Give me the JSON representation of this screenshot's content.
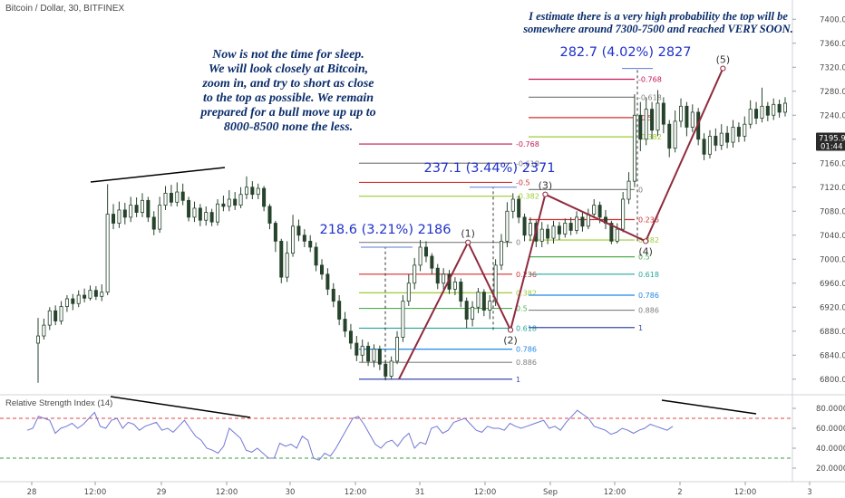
{
  "symbol_title": "Bitcoin / Dollar, 30, BITFINEX",
  "notes": {
    "left": [
      "Now is not the time for sleep.",
      "We will look closely at Bitcoin,",
      "zoom in, and try to short as close",
      "to the top as possible. We remain",
      "prepared for a bull move up up to",
      "8000-8500 none the less."
    ],
    "right": [
      "I estimate there is a very high probability the top will be",
      "somewhere around 7300-7500 and reached VERY SOON."
    ]
  },
  "measures": [
    "218.6 (3.21%) 2186",
    "237.1 (3.44%) 2371",
    "282.7 (4.02%) 2827"
  ],
  "colors": {
    "bull": "#26432b",
    "bear": "#26432b",
    "rsi_line": "#7077d6",
    "overbought": "#e24646",
    "oversold": "#3b9d3b",
    "wave_line": "#8f2b3f",
    "trendline": "#000000",
    "last_price_badge": "#2a2a2a"
  },
  "chart_data": [
    {
      "type": "candlestick",
      "title": "Bitcoin / Dollar, 30, BITFINEX",
      "ylim": [
        6780,
        7420
      ],
      "yticks": [
        6800,
        6840,
        6880,
        6920,
        6960,
        7000,
        7040,
        7080,
        7120,
        7160,
        7200,
        7240,
        7280,
        7320,
        7360,
        7400
      ],
      "xticks": [
        "28",
        "12:00",
        "29",
        "12:00",
        "30",
        "12:00",
        "31",
        "12:00",
        "Sep",
        "12:00",
        "2",
        "12:00",
        "3"
      ],
      "last_price": "7195.9",
      "countdown": "01:44",
      "candles_ohlc": [
        [
          6860,
          6872,
          6794,
          6902
        ],
        [
          6872,
          6890,
          6866,
          6901
        ],
        [
          6890,
          6914,
          6882,
          6920
        ],
        [
          6914,
          6897,
          6890,
          6923
        ],
        [
          6897,
          6921,
          6891,
          6930
        ],
        [
          6921,
          6934,
          6912,
          6940
        ],
        [
          6934,
          6926,
          6915,
          6942
        ],
        [
          6926,
          6940,
          6920,
          6948
        ],
        [
          6940,
          6935,
          6928,
          6951
        ],
        [
          6935,
          6948,
          6931,
          6956
        ],
        [
          6948,
          6938,
          6932,
          6955
        ],
        [
          6938,
          6945,
          6930,
          6958
        ],
        [
          6945,
          7075,
          6940,
          7125
        ],
        [
          7075,
          7060,
          7050,
          7092
        ],
        [
          7060,
          7082,
          7052,
          7096
        ],
        [
          7082,
          7070,
          7058,
          7094
        ],
        [
          7070,
          7090,
          7062,
          7104
        ],
        [
          7090,
          7078,
          7070,
          7103
        ],
        [
          7078,
          7098,
          7070,
          7110
        ],
        [
          7098,
          7070,
          7062,
          7104
        ],
        [
          7070,
          7050,
          7040,
          7080
        ],
        [
          7050,
          7090,
          7044,
          7104
        ],
        [
          7090,
          7110,
          7082,
          7122
        ],
        [
          7110,
          7095,
          7088,
          7124
        ],
        [
          7095,
          7112,
          7088,
          7128
        ],
        [
          7112,
          7098,
          7090,
          7126
        ],
        [
          7098,
          7070,
          7063,
          7104
        ],
        [
          7070,
          7085,
          7062,
          7096
        ],
        [
          7085,
          7065,
          7055,
          7092
        ],
        [
          7065,
          7078,
          7056,
          7088
        ],
        [
          7078,
          7062,
          7055,
          7084
        ],
        [
          7062,
          7092,
          7056,
          7100
        ],
        [
          7092,
          7088,
          7080,
          7106
        ],
        [
          7088,
          7100,
          7080,
          7115
        ],
        [
          7100,
          7090,
          7082,
          7112
        ],
        [
          7090,
          7108,
          7085,
          7120
        ],
        [
          7108,
          7120,
          7100,
          7138
        ],
        [
          7120,
          7108,
          7100,
          7130
        ],
        [
          7108,
          7118,
          7100,
          7126
        ],
        [
          7118,
          7088,
          7080,
          7122
        ],
        [
          7088,
          7060,
          7050,
          7092
        ],
        [
          7060,
          7030,
          7012,
          7064
        ],
        [
          7030,
          6970,
          6960,
          7034
        ],
        [
          6970,
          7010,
          6962,
          7030
        ],
        [
          7010,
          7055,
          7004,
          7074
        ],
        [
          7055,
          7040,
          7030,
          7066
        ],
        [
          7040,
          7030,
          7020,
          7050
        ],
        [
          7030,
          7020,
          7012,
          7040
        ],
        [
          7020,
          6990,
          6980,
          7028
        ],
        [
          6990,
          6975,
          6966,
          7000
        ],
        [
          6975,
          6950,
          6940,
          6985
        ],
        [
          6950,
          6930,
          6920,
          6960
        ],
        [
          6930,
          6900,
          6890,
          6940
        ],
        [
          6900,
          6880,
          6870,
          6912
        ],
        [
          6880,
          6860,
          6850,
          6892
        ],
        [
          6860,
          6840,
          6830,
          6872
        ],
        [
          6840,
          6855,
          6828,
          6866
        ],
        [
          6855,
          6830,
          6822,
          6862
        ],
        [
          6830,
          6850,
          6820,
          6858
        ],
        [
          6850,
          6825,
          6815,
          6856
        ],
        [
          6825,
          6805,
          6798,
          6832
        ],
        [
          6805,
          6830,
          6800,
          6838
        ],
        [
          6830,
          6870,
          6825,
          6880
        ],
        [
          6870,
          6930,
          6862,
          6940
        ],
        [
          6930,
          6960,
          6922,
          6975
        ],
        [
          6960,
          6990,
          6950,
          7002
        ],
        [
          6990,
          7020,
          6980,
          7032
        ],
        [
          7020,
          7005,
          6995,
          7030
        ],
        [
          7005,
          6985,
          6975,
          7010
        ],
        [
          6985,
          6960,
          6950,
          6992
        ],
        [
          6960,
          6975,
          6950,
          6985
        ],
        [
          6975,
          6950,
          6942,
          6982
        ],
        [
          6950,
          6962,
          6940,
          6970
        ],
        [
          6962,
          6930,
          6920,
          6968
        ],
        [
          6930,
          6900,
          6885,
          6936
        ],
        [
          6900,
          6920,
          6888,
          6930
        ],
        [
          6920,
          6945,
          6910,
          6952
        ],
        [
          6945,
          6915,
          6905,
          6950
        ],
        [
          6915,
          6930,
          6900,
          6940
        ],
        [
          6930,
          6990,
          6922,
          7000
        ],
        [
          6990,
          7030,
          6982,
          7042
        ],
        [
          7030,
          7080,
          7020,
          7095
        ],
        [
          7080,
          7100,
          7068,
          7110
        ],
        [
          7100,
          7070,
          7060,
          7106
        ],
        [
          7070,
          7040,
          7030,
          7076
        ],
        [
          7040,
          7060,
          7030,
          7070
        ],
        [
          7060,
          7030,
          7020,
          7065
        ],
        [
          7030,
          7050,
          7020,
          7062
        ],
        [
          7050,
          7035,
          7025,
          7058
        ],
        [
          7035,
          7055,
          7026,
          7064
        ],
        [
          7055,
          7042,
          7032,
          7062
        ],
        [
          7042,
          7060,
          7036,
          7068
        ],
        [
          7060,
          7048,
          7040,
          7070
        ],
        [
          7048,
          7070,
          7042,
          7080
        ],
        [
          7070,
          7055,
          7046,
          7078
        ],
        [
          7055,
          7075,
          7050,
          7084
        ],
        [
          7075,
          7090,
          7068,
          7100
        ],
        [
          7090,
          7070,
          7060,
          7096
        ],
        [
          7070,
          7060,
          7050,
          7082
        ],
        [
          7060,
          7030,
          7025,
          7064
        ],
        [
          7030,
          7050,
          7026,
          7060
        ],
        [
          7050,
          7100,
          7045,
          7112
        ],
        [
          7100,
          7130,
          7092,
          7145
        ],
        [
          7130,
          7240,
          7120,
          7275
        ],
        [
          7240,
          7200,
          7180,
          7262
        ],
        [
          7200,
          7250,
          7190,
          7270
        ],
        [
          7250,
          7215,
          7200,
          7262
        ],
        [
          7215,
          7260,
          7205,
          7282
        ],
        [
          7260,
          7225,
          7210,
          7270
        ],
        [
          7225,
          7185,
          7170,
          7232
        ],
        [
          7185,
          7230,
          7178,
          7248
        ],
        [
          7230,
          7255,
          7220,
          7268
        ],
        [
          7255,
          7220,
          7205,
          7262
        ],
        [
          7220,
          7245,
          7212,
          7258
        ],
        [
          7245,
          7200,
          7190,
          7252
        ],
        [
          7200,
          7175,
          7165,
          7210
        ],
        [
          7175,
          7205,
          7168,
          7215
        ],
        [
          7205,
          7190,
          7180,
          7218
        ],
        [
          7190,
          7210,
          7182,
          7225
        ],
        [
          7210,
          7195,
          7185,
          7222
        ],
        [
          7195,
          7220,
          7186,
          7232
        ],
        [
          7220,
          7205,
          7195,
          7228
        ],
        [
          7205,
          7225,
          7196,
          7238
        ],
        [
          7225,
          7250,
          7218,
          7265
        ],
        [
          7250,
          7235,
          7225,
          7262
        ],
        [
          7235,
          7255,
          7228,
          7286
        ],
        [
          7255,
          7240,
          7230,
          7262
        ],
        [
          7240,
          7258,
          7232,
          7268
        ],
        [
          7258,
          7245,
          7236,
          7266
        ],
        [
          7245,
          7260,
          7238,
          7270
        ]
      ],
      "wave_points": [
        {
          "label": "(1)",
          "x_frac": 0.6,
          "price": 7028
        },
        {
          "label": "(2)",
          "x_frac": 0.655,
          "price": 6882
        },
        {
          "label": "(3)",
          "x_frac": 0.7,
          "price": 7108
        },
        {
          "label": "(4)",
          "x_frac": 0.83,
          "price": 7030
        },
        {
          "label": "(5)",
          "x_frac": 0.93,
          "price": 7318
        }
      ],
      "fib_sets": [
        {
          "levels": [
            {
              "label": "-0.768",
              "price": 7192,
              "color": "#c2185b"
            },
            {
              "label": "-0.618",
              "price": 7160,
              "color": "#808080"
            },
            {
              "label": "-0.5",
              "price": 7128,
              "color": "#d32f2f"
            },
            {
              "label": "-0.382",
              "price": 7105,
              "color": "#9acd32"
            },
            {
              "label": "0",
              "price": 7028,
              "color": "#808080"
            },
            {
              "label": "0.236",
              "price": 6975,
              "color": "#d32f2f"
            },
            {
              "label": "0.382",
              "price": 6944,
              "color": "#9acd32"
            },
            {
              "label": "0.5",
              "price": 6918,
              "color": "#4caf50"
            },
            {
              "label": "0.618",
              "price": 6885,
              "color": "#26a69a"
            },
            {
              "label": "0.786",
              "price": 6850,
              "color": "#1e88e5"
            },
            {
              "label": "0.886",
              "price": 6828,
              "color": "#808080"
            },
            {
              "label": "1",
              "price": 6800,
              "color": "#3949ab"
            }
          ]
        },
        {
          "levels": [
            {
              "label": "-0.768",
              "price": 7300,
              "color": "#c2185b"
            },
            {
              "label": "-0.618",
              "price": 7270,
              "color": "#808080"
            },
            {
              "label": "-0.5",
              "price": 7236,
              "color": "#d32f2f"
            },
            {
              "label": "-0.382",
              "price": 7204,
              "color": "#9acd32"
            },
            {
              "label": "0",
              "price": 7116,
              "color": "#808080"
            },
            {
              "label": "0.236",
              "price": 7066,
              "color": "#d32f2f"
            },
            {
              "label": "0.382",
              "price": 7032,
              "color": "#9acd32"
            },
            {
              "label": "0.5",
              "price": 7004,
              "color": "#4caf50"
            },
            {
              "label": "0.618",
              "price": 6975,
              "color": "#26a69a"
            },
            {
              "label": "0.786",
              "price": 6940,
              "color": "#1e88e5"
            },
            {
              "label": "0.886",
              "price": 6915,
              "color": "#808080"
            },
            {
              "label": "1",
              "price": 6886,
              "color": "#3949ab"
            }
          ]
        }
      ]
    },
    {
      "type": "line",
      "title": "Relative Strength Index (14)",
      "ylim": [
        10,
        90
      ],
      "yticks": [
        20,
        40,
        60,
        80
      ],
      "ytick_labels": [
        "20.0000",
        "40.0000",
        "60.0000",
        "80.0000"
      ],
      "overbought": 70,
      "oversold": 30,
      "values": [
        58,
        60,
        72,
        70,
        68,
        55,
        60,
        62,
        65,
        60,
        64,
        70,
        76,
        62,
        60,
        68,
        70,
        60,
        66,
        64,
        58,
        62,
        64,
        66,
        58,
        60,
        56,
        62,
        68,
        60,
        52,
        48,
        40,
        38,
        35,
        42,
        60,
        55,
        50,
        38,
        36,
        40,
        35,
        30,
        30,
        45,
        42,
        44,
        40,
        52,
        48,
        30,
        28,
        35,
        32,
        40,
        50,
        60,
        70,
        72,
        64,
        54,
        44,
        40,
        46,
        48,
        42,
        50,
        55,
        40,
        46,
        44,
        60,
        62,
        55,
        58,
        66,
        68,
        70,
        64,
        58,
        56,
        62,
        60,
        60,
        58,
        65,
        62,
        60,
        62,
        64,
        66,
        68,
        60,
        62,
        58,
        66,
        72,
        78,
        74,
        70,
        62,
        60,
        58,
        54,
        56,
        60,
        58,
        55,
        58,
        60,
        64,
        62,
        60,
        58,
        62
      ]
    }
  ]
}
